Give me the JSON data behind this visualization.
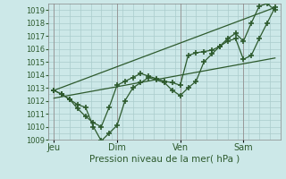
{
  "background_color": "#cce8e8",
  "grid_color": "#aacccc",
  "line_color": "#2d5a2d",
  "marker_color": "#2d5a2d",
  "title": "Pression niveau de la mer( hPa )",
  "ylim": [
    1009,
    1019.5
  ],
  "yticks": [
    1009,
    1010,
    1011,
    1012,
    1013,
    1014,
    1015,
    1016,
    1017,
    1018,
    1019
  ],
  "xtick_labels": [
    "Jeu",
    "Dim",
    "Ven",
    "Sam"
  ],
  "xtick_positions": [
    0,
    48,
    96,
    144
  ],
  "xlim": [
    -4,
    172
  ],
  "series1_x": [
    0,
    6,
    12,
    18,
    24,
    30,
    36,
    42,
    48,
    54,
    60,
    66,
    72,
    78,
    84,
    90,
    96,
    102,
    108,
    114,
    120,
    126,
    132,
    138,
    144,
    150,
    156,
    162,
    168
  ],
  "series1_y": [
    1012.8,
    1012.5,
    1012.1,
    1011.4,
    1010.8,
    1010.3,
    1010.0,
    1011.5,
    1013.2,
    1013.5,
    1013.8,
    1014.1,
    1013.9,
    1013.7,
    1013.5,
    1013.4,
    1013.2,
    1015.5,
    1015.7,
    1015.8,
    1015.9,
    1016.2,
    1016.6,
    1016.8,
    1015.2,
    1015.5,
    1016.8,
    1018.0,
    1019.2
  ],
  "series2_x": [
    0,
    6,
    12,
    18,
    24,
    30,
    36,
    42,
    48,
    54,
    60,
    66,
    72,
    78,
    84,
    90,
    96,
    102,
    108,
    114,
    120,
    126,
    132,
    138,
    144,
    150,
    156,
    162,
    168
  ],
  "series2_y": [
    1012.8,
    1012.5,
    1012.1,
    1011.7,
    1011.5,
    1010.0,
    1008.9,
    1009.5,
    1010.1,
    1012.0,
    1013.0,
    1013.4,
    1013.8,
    1013.6,
    1013.4,
    1012.8,
    1012.4,
    1013.0,
    1013.5,
    1015.0,
    1015.6,
    1016.2,
    1016.8,
    1017.2,
    1016.6,
    1018.0,
    1019.3,
    1019.5,
    1019.0
  ],
  "series3_x": [
    0,
    168
  ],
  "series3_y": [
    1012.8,
    1019.2
  ],
  "series4_x": [
    0,
    168
  ],
  "series4_y": [
    1012.2,
    1015.3
  ],
  "vline_positions": [
    0,
    48,
    96,
    144
  ]
}
